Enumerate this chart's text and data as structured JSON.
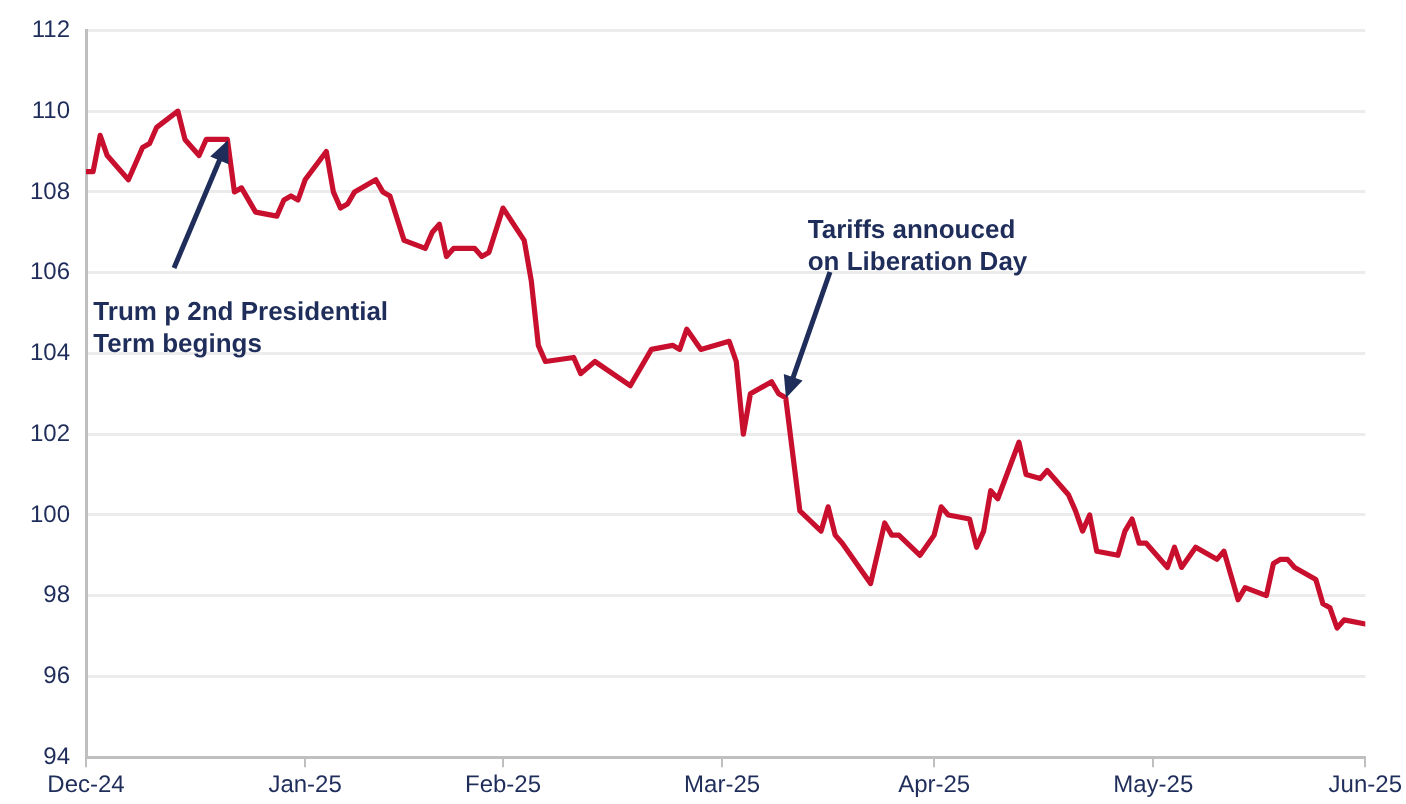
{
  "chart_data": {
    "type": "line",
    "x": [
      "2024-12-31",
      "2025-01-01",
      "2025-01-02",
      "2025-01-03",
      "2025-01-06",
      "2025-01-08",
      "2025-01-09",
      "2025-01-10",
      "2025-01-13",
      "2025-01-14",
      "2025-01-16",
      "2025-01-17",
      "2025-01-20",
      "2025-01-21",
      "2025-01-22",
      "2025-01-24",
      "2025-01-27",
      "2025-01-28",
      "2025-01-29",
      "2025-01-30",
      "2025-01-31",
      "2025-02-03",
      "2025-02-04",
      "2025-02-05",
      "2025-02-06",
      "2025-02-07",
      "2025-02-10",
      "2025-02-11",
      "2025-02-12",
      "2025-02-14",
      "2025-02-17",
      "2025-02-18",
      "2025-02-19",
      "2025-02-20",
      "2025-02-21",
      "2025-02-24",
      "2025-02-25",
      "2025-02-26",
      "2025-02-28",
      "2025-03-03",
      "2025-03-04",
      "2025-03-05",
      "2025-03-06",
      "2025-03-10",
      "2025-03-11",
      "2025-03-13",
      "2025-03-18",
      "2025-03-21",
      "2025-03-24",
      "2025-03-25",
      "2025-03-26",
      "2025-03-28",
      "2025-04-01",
      "2025-04-02",
      "2025-04-03",
      "2025-04-04",
      "2025-04-07",
      "2025-04-08",
      "2025-04-09",
      "2025-04-10",
      "2025-04-11",
      "2025-04-14",
      "2025-04-15",
      "2025-04-16",
      "2025-04-17",
      "2025-04-21",
      "2025-04-23",
      "2025-04-24",
      "2025-04-25",
      "2025-04-28",
      "2025-04-30",
      "2025-05-01",
      "2025-05-02",
      "2025-05-05",
      "2025-05-06",
      "2025-05-07",
      "2025-05-08",
      "2025-05-09",
      "2025-05-12",
      "2025-05-13",
      "2025-05-15",
      "2025-05-16",
      "2025-05-19",
      "2025-05-20",
      "2025-05-21",
      "2025-05-22",
      "2025-05-23",
      "2025-05-26",
      "2025-05-27",
      "2025-05-28",
      "2025-05-29",
      "2025-05-30",
      "2025-06-02",
      "2025-06-03",
      "2025-06-04",
      "2025-06-06",
      "2025-06-09",
      "2025-06-10",
      "2025-06-12",
      "2025-06-13",
      "2025-06-16",
      "2025-06-17",
      "2025-06-18",
      "2025-06-19",
      "2025-06-20",
      "2025-06-23",
      "2025-06-24",
      "2025-06-25",
      "2025-06-26",
      "2025-06-27",
      "2025-06-30"
    ],
    "series": [
      {
        "color": "#c8102e",
        "values": [
          108.5,
          108.5,
          109.4,
          108.9,
          108.3,
          109.1,
          109.2,
          109.6,
          110.0,
          109.3,
          108.9,
          109.3,
          109.3,
          108.0,
          108.1,
          107.5,
          107.4,
          107.8,
          107.9,
          107.8,
          108.3,
          109.0,
          108.0,
          107.6,
          107.7,
          108.0,
          108.3,
          108.0,
          107.9,
          106.8,
          106.6,
          107.0,
          107.2,
          106.4,
          106.6,
          106.6,
          106.4,
          106.5,
          107.6,
          106.8,
          105.8,
          104.2,
          103.8,
          103.9,
          103.5,
          103.8,
          103.2,
          104.1,
          104.2,
          104.1,
          104.6,
          104.1,
          104.3,
          103.8,
          102.0,
          103.0,
          103.3,
          103.0,
          102.9,
          101.5,
          100.1,
          99.6,
          100.2,
          99.5,
          99.3,
          98.3,
          99.8,
          99.5,
          99.5,
          99.0,
          99.5,
          100.2,
          100.0,
          99.9,
          99.2,
          99.6,
          100.6,
          100.4,
          101.8,
          101.0,
          100.9,
          101.1,
          100.5,
          100.1,
          99.6,
          100.0,
          99.1,
          99.0,
          99.6,
          99.9,
          99.3,
          99.3,
          98.7,
          99.2,
          98.7,
          99.2,
          98.9,
          99.1,
          97.9,
          98.2,
          98.0,
          98.8,
          98.9,
          98.9,
          98.7,
          98.4,
          97.8,
          97.7,
          97.2,
          97.4,
          97.3
        ]
      }
    ],
    "xlim": [
      "2024-12-31",
      "2025-06-30"
    ],
    "xticks": [
      {
        "value": "2024-12-31",
        "label": "Dec-24"
      },
      {
        "value": "2025-01-31",
        "label": "Jan-25"
      },
      {
        "value": "2025-02-28",
        "label": "Feb-25"
      },
      {
        "value": "2025-03-31",
        "label": "Mar-25"
      },
      {
        "value": "2025-04-30",
        "label": "Apr-25"
      },
      {
        "value": "2025-05-31",
        "label": "May-25"
      },
      {
        "value": "2025-06-30",
        "label": "Jun-25"
      }
    ],
    "ylim": [
      94,
      112
    ],
    "yticks": [
      94,
      96,
      98,
      100,
      102,
      104,
      106,
      108,
      110,
      112
    ],
    "grid": "y",
    "annotations": [
      {
        "text": "Trum p 2nd Presidential\nTerm begings",
        "x": "2025-01-20",
        "y": 109.3
      },
      {
        "text": "Tariffs annouced\non Liberation Day",
        "x": "2025-04-09",
        "y": 102.9
      }
    ]
  }
}
